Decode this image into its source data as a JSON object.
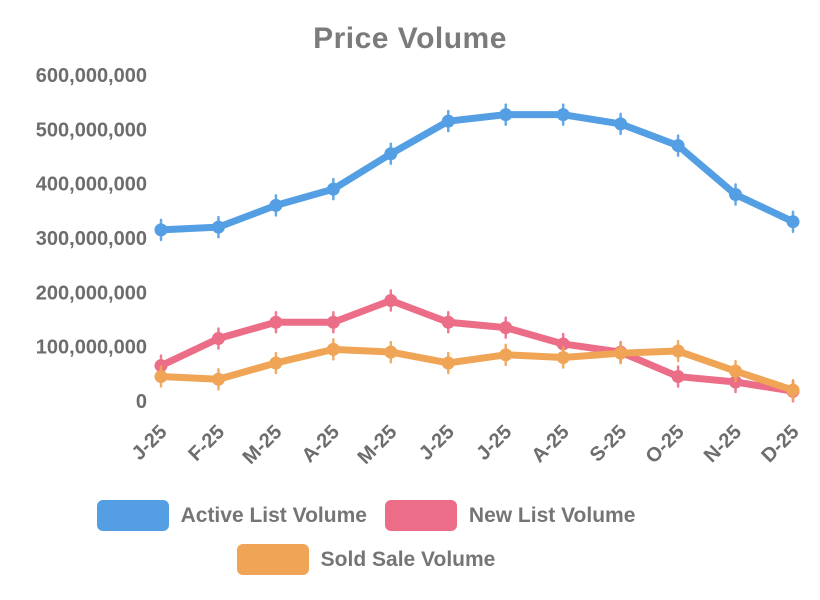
{
  "title": "Price Volume",
  "chart_data": {
    "type": "line",
    "title": "Price Volume",
    "categories": [
      "J-25",
      "F-25",
      "M-25",
      "A-25",
      "M-25",
      "J-25",
      "J-25",
      "A-25",
      "S-25",
      "O-25",
      "N-25",
      "D-25"
    ],
    "series": [
      {
        "name": "Active List Volume",
        "color": "#549FE3",
        "values": [
          315000000,
          320000000,
          360000000,
          390000000,
          455000000,
          515000000,
          527000000,
          527000000,
          510000000,
          470000000,
          380000000,
          330000000
        ]
      },
      {
        "name": "New List Volume",
        "color": "#EC6D87",
        "values": [
          65000000,
          115000000,
          145000000,
          145000000,
          185000000,
          145000000,
          135000000,
          105000000,
          90000000,
          45000000,
          35000000,
          18000000
        ]
      },
      {
        "name": "Sold Sale Volume",
        "color": "#F0A455",
        "values": [
          45000000,
          40000000,
          70000000,
          95000000,
          90000000,
          70000000,
          85000000,
          80000000,
          88000000,
          92000000,
          55000000,
          20000000
        ]
      }
    ],
    "ylim": [
      0,
      600000000
    ],
    "ytick_step": 100000000,
    "yticklabels": [
      "0",
      "100,000,000",
      "200,000,000",
      "300,000,000",
      "400,000,000",
      "500,000,000",
      "600,000,000"
    ],
    "grid": false,
    "legend_position": "bottom",
    "text_color": "#6d6d6d",
    "title_color": "#7b7b7b"
  }
}
